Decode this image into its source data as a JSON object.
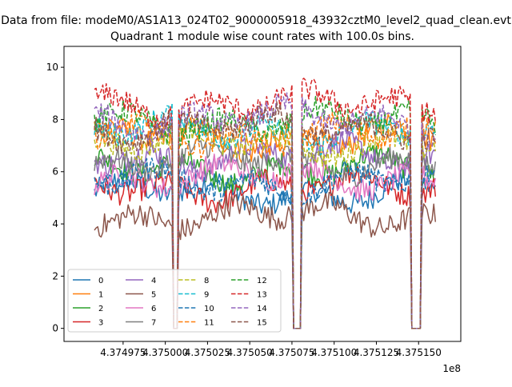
{
  "suptitle": "Data from file: modeM0/AS1A13_024T02_9000005918_43932cztM0_level2_quad_clean.evt",
  "chart_data": {
    "type": "line",
    "title": "Quadrant 1 module wise count rates with 100.0s bins.",
    "xlabel": "",
    "ylabel": "",
    "x_offset_label": "1e8",
    "xlim": [
      437494000,
      437517500
    ],
    "ylim": [
      -0.5,
      10.8
    ],
    "x_tick_values": [
      437497500,
      437500000,
      437502500,
      437505000,
      437507500,
      437510000,
      437512500,
      437515000
    ],
    "x_tick_labels": [
      "4.374975",
      "4.375000",
      "4.375025",
      "4.375050",
      "4.375075",
      "4.375100",
      "4.375125",
      "4.375150"
    ],
    "y_tick_values": [
      0,
      2,
      4,
      6,
      8,
      10
    ],
    "y_tick_labels": [
      "0",
      "2",
      "4",
      "6",
      "8",
      "10"
    ],
    "grid": false,
    "legend_location": "lower-left",
    "legend_columns": 4,
    "x_start": 437495800,
    "x_end": 437516000,
    "bin_seconds": 100,
    "gaps": [
      {
        "from": 437500500,
        "to": 437500700
      },
      {
        "from": 437507600,
        "to": 437508000
      },
      {
        "from": 437514600,
        "to": 437515100
      }
    ],
    "series": [
      {
        "name": "0",
        "level": 5.2,
        "color": "#1f77b4",
        "dash": "solid"
      },
      {
        "name": "1",
        "level": 7.3,
        "color": "#ff7f0e",
        "dash": "solid"
      },
      {
        "name": "2",
        "level": 6.1,
        "color": "#2ca02c",
        "dash": "solid"
      },
      {
        "name": "3",
        "level": 5.4,
        "color": "#d62728",
        "dash": "solid"
      },
      {
        "name": "4",
        "level": 6.6,
        "color": "#9467bd",
        "dash": "solid"
      },
      {
        "name": "5",
        "level": 4.3,
        "color": "#8c564b",
        "dash": "solid"
      },
      {
        "name": "6",
        "level": 5.8,
        "color": "#e377c2",
        "dash": "solid"
      },
      {
        "name": "7",
        "level": 6.4,
        "color": "#7f7f7f",
        "dash": "solid"
      },
      {
        "name": "8",
        "level": 7.1,
        "color": "#bcbd22",
        "dash": "dashed"
      },
      {
        "name": "9",
        "level": 7.6,
        "color": "#17becf",
        "dash": "dashed"
      },
      {
        "name": "10",
        "level": 5.6,
        "color": "#1f77b4",
        "dash": "dashed"
      },
      {
        "name": "11",
        "level": 7.4,
        "color": "#ff7f0e",
        "dash": "dashed"
      },
      {
        "name": "12",
        "level": 7.9,
        "color": "#2ca02c",
        "dash": "dashed"
      },
      {
        "name": "13",
        "level": 8.6,
        "color": "#d62728",
        "dash": "dashed"
      },
      {
        "name": "14",
        "level": 8.0,
        "color": "#9467bd",
        "dash": "dashed"
      },
      {
        "name": "15",
        "level": 7.7,
        "color": "#8c564b",
        "dash": "dashed"
      }
    ]
  }
}
